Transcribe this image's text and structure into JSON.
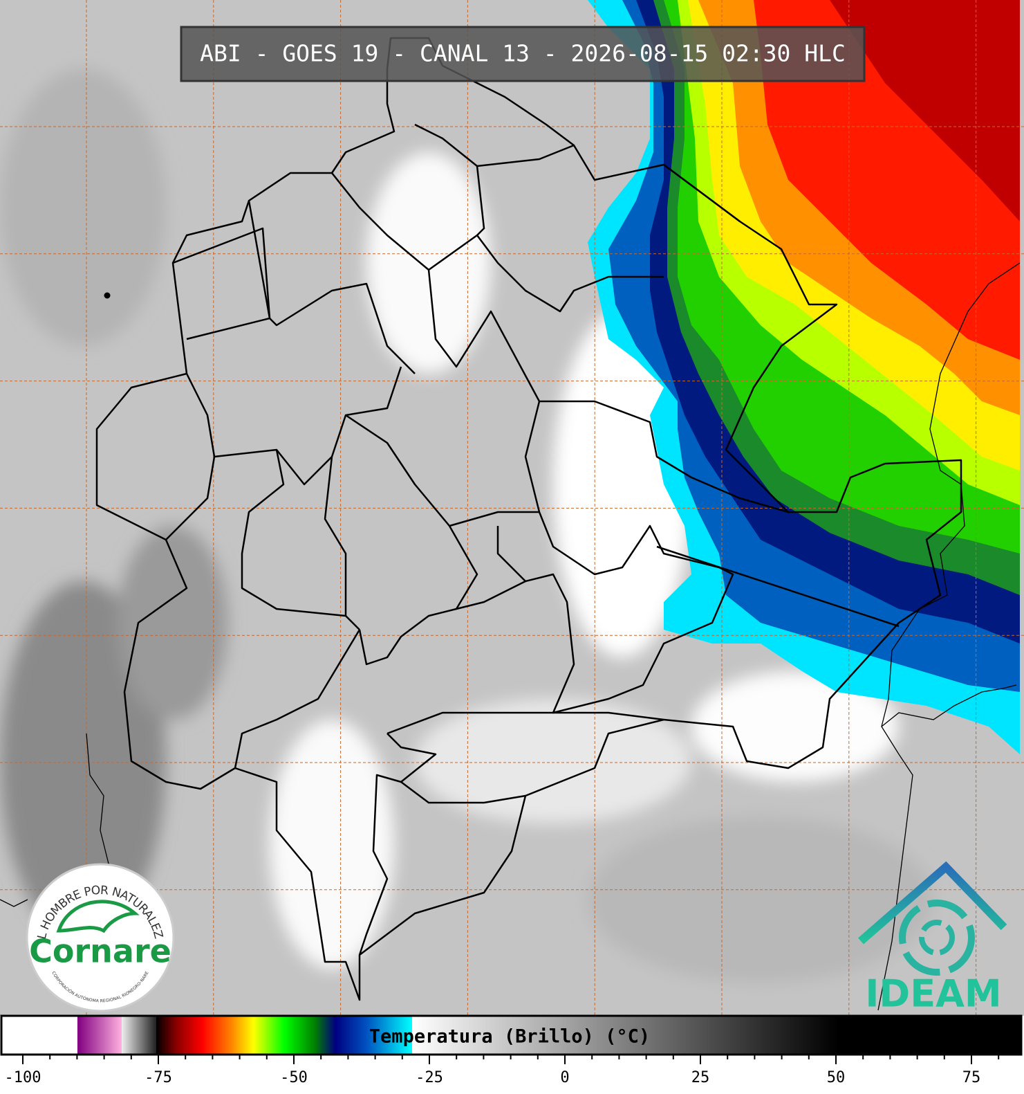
{
  "header": {
    "title": "ABI - GOES 19 - CANAL 13 - 2026-08-15 02:30 HLC"
  },
  "colorbar": {
    "label": "Temperatura (Brillo) (°C)",
    "ticks": [
      -100,
      -75,
      -50,
      -25,
      0,
      25,
      50,
      75
    ]
  },
  "logos": {
    "cornare": {
      "motto": "EL HOMBRE POR NATURALEZA",
      "name": "Cornare",
      "subtitle": "CORPORACIÓN AUTÓNOMA REGIONAL RIONEGRO-NARE"
    },
    "ideam": {
      "name": "IDEAM"
    }
  }
}
